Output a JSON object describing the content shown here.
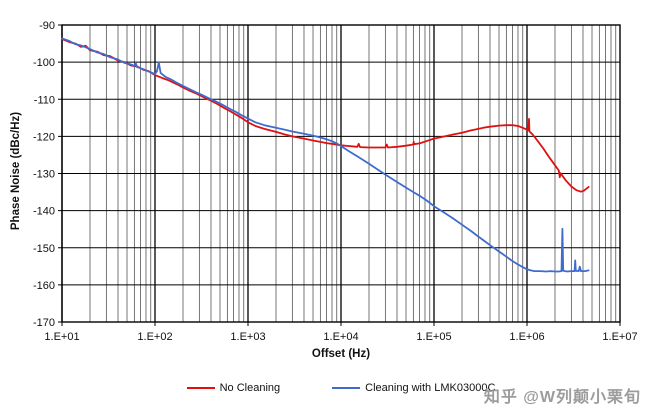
{
  "watermark": "知乎 @W列颠小栗旬",
  "chart_data": {
    "type": "line",
    "title": "",
    "xlabel": "Offset (Hz)",
    "ylabel": "Phase Noise (dBc/Hz)",
    "x_scale": "log",
    "xlim": [
      10,
      10000000
    ],
    "ylim": [
      -170,
      -90
    ],
    "grid": {
      "x_major": true,
      "x_minor": true,
      "y_major": true
    },
    "legend_position": "bottom",
    "x_ticks": [
      {
        "label": "1.E+01",
        "value": 10
      },
      {
        "label": "1.E+02",
        "value": 100
      },
      {
        "label": "1.E+03",
        "value": 1000
      },
      {
        "label": "1.E+04",
        "value": 10000
      },
      {
        "label": "1.E+05",
        "value": 100000
      },
      {
        "label": "1.E+06",
        "value": 1000000
      },
      {
        "label": "1.E+07",
        "value": 10000000
      }
    ],
    "y_ticks": [
      {
        "label": "-90",
        "value": -90
      },
      {
        "label": "-100",
        "value": -100
      },
      {
        "label": "-110",
        "value": -110
      },
      {
        "label": "-120",
        "value": -120
      },
      {
        "label": "-130",
        "value": -130
      },
      {
        "label": "-140",
        "value": -140
      },
      {
        "label": "-150",
        "value": -150
      },
      {
        "label": "-160",
        "value": -160
      },
      {
        "label": "-170",
        "value": -170
      }
    ],
    "series": [
      {
        "name": "No Cleaning",
        "color": "#e01010",
        "points": [
          [
            10,
            -93.8
          ],
          [
            12,
            -94.6
          ],
          [
            14,
            -95.0
          ],
          [
            16,
            -95.9
          ],
          [
            18,
            -95.6
          ],
          [
            20,
            -96.8
          ],
          [
            24,
            -97.2
          ],
          [
            28,
            -98.1
          ],
          [
            33,
            -98.4
          ],
          [
            40,
            -99.6
          ],
          [
            47,
            -100.0
          ],
          [
            55,
            -100.9
          ],
          [
            65,
            -101.2
          ],
          [
            75,
            -102.1
          ],
          [
            85,
            -102.4
          ],
          [
            100,
            -103.5
          ],
          [
            120,
            -104.3
          ],
          [
            140,
            -104.9
          ],
          [
            170,
            -105.9
          ],
          [
            200,
            -106.8
          ],
          [
            240,
            -107.8
          ],
          [
            280,
            -108.5
          ],
          [
            330,
            -109.4
          ],
          [
            400,
            -110.4
          ],
          [
            470,
            -111.3
          ],
          [
            550,
            -112.3
          ],
          [
            650,
            -113.3
          ],
          [
            750,
            -114.2
          ],
          [
            850,
            -115.0
          ],
          [
            1000,
            -116.2
          ],
          [
            1200,
            -117.2
          ],
          [
            1500,
            -118.0
          ],
          [
            2000,
            -118.8
          ],
          [
            2500,
            -119.5
          ],
          [
            3000,
            -120.0
          ],
          [
            4000,
            -120.6
          ],
          [
            5000,
            -121.1
          ],
          [
            6000,
            -121.5
          ],
          [
            7000,
            -121.8
          ],
          [
            8500,
            -122.1
          ],
          [
            10000,
            -122.4
          ],
          [
            12000,
            -122.6
          ],
          [
            15000,
            -122.8
          ],
          [
            15500,
            -122.0
          ],
          [
            16000,
            -122.9
          ],
          [
            20000,
            -123.0
          ],
          [
            25000,
            -123.0
          ],
          [
            30000,
            -123.0
          ],
          [
            31000,
            -122.2
          ],
          [
            32000,
            -123.0
          ],
          [
            40000,
            -122.8
          ],
          [
            50000,
            -122.5
          ],
          [
            60000,
            -122.2
          ],
          [
            60500,
            -121.5
          ],
          [
            61000,
            -122.1
          ],
          [
            70000,
            -121.9
          ],
          [
            85000,
            -121.2
          ],
          [
            100000,
            -120.6
          ],
          [
            130000,
            -120.0
          ],
          [
            160000,
            -119.5
          ],
          [
            200000,
            -119.0
          ],
          [
            250000,
            -118.4
          ],
          [
            300000,
            -118.0
          ],
          [
            350000,
            -117.6
          ],
          [
            400000,
            -117.4
          ],
          [
            500000,
            -117.1
          ],
          [
            600000,
            -117.0
          ],
          [
            700000,
            -117.0
          ],
          [
            800000,
            -117.2
          ],
          [
            900000,
            -117.7
          ],
          [
            1000000,
            -118.2
          ],
          [
            1040000,
            -118.4
          ],
          [
            1050000,
            -115.3
          ],
          [
            1060000,
            -118.6
          ],
          [
            1150000,
            -119.5
          ],
          [
            1300000,
            -121.2
          ],
          [
            1500000,
            -123.3
          ],
          [
            1700000,
            -125.3
          ],
          [
            2000000,
            -127.8
          ],
          [
            2200000,
            -129.2
          ],
          [
            2250000,
            -131.0
          ],
          [
            2300000,
            -129.9
          ],
          [
            2600000,
            -131.8
          ],
          [
            3000000,
            -133.5
          ],
          [
            3400000,
            -134.5
          ],
          [
            3800000,
            -134.9
          ],
          [
            4100000,
            -134.6
          ],
          [
            4400000,
            -134.0
          ],
          [
            4600000,
            -133.6
          ]
        ]
      },
      {
        "name": "Cleaning with LMK03000C",
        "color": "#3f6bcf",
        "points": [
          [
            10,
            -93.6
          ],
          [
            12,
            -94.3
          ],
          [
            14,
            -95.2
          ],
          [
            16,
            -95.5
          ],
          [
            18,
            -96.0
          ],
          [
            20,
            -96.5
          ],
          [
            24,
            -97.4
          ],
          [
            28,
            -97.8
          ],
          [
            33,
            -98.7
          ],
          [
            40,
            -99.3
          ],
          [
            47,
            -100.2
          ],
          [
            55,
            -100.6
          ],
          [
            60,
            -101.0
          ],
          [
            62,
            -100.2
          ],
          [
            64,
            -101.3
          ],
          [
            75,
            -101.9
          ],
          [
            85,
            -102.5
          ],
          [
            100,
            -103.2
          ],
          [
            105,
            -102.4
          ],
          [
            110,
            -100.1
          ],
          [
            115,
            -102.9
          ],
          [
            130,
            -104.0
          ],
          [
            150,
            -104.7
          ],
          [
            170,
            -105.5
          ],
          [
            200,
            -106.4
          ],
          [
            240,
            -107.4
          ],
          [
            280,
            -108.2
          ],
          [
            330,
            -109.0
          ],
          [
            400,
            -110.0
          ],
          [
            470,
            -110.8
          ],
          [
            550,
            -111.7
          ],
          [
            650,
            -112.7
          ],
          [
            750,
            -113.5
          ],
          [
            850,
            -114.3
          ],
          [
            1000,
            -115.2
          ],
          [
            1200,
            -116.2
          ],
          [
            1500,
            -117.0
          ],
          [
            2000,
            -117.7
          ],
          [
            2500,
            -118.2
          ],
          [
            3000,
            -118.7
          ],
          [
            4000,
            -119.3
          ],
          [
            5000,
            -119.8
          ],
          [
            6000,
            -120.3
          ],
          [
            7000,
            -120.8
          ],
          [
            8000,
            -121.3
          ],
          [
            9000,
            -121.9
          ],
          [
            10000,
            -122.6
          ],
          [
            12000,
            -123.9
          ],
          [
            15000,
            -125.4
          ],
          [
            20000,
            -127.4
          ],
          [
            25000,
            -129.0
          ],
          [
            30000,
            -130.3
          ],
          [
            40000,
            -132.3
          ],
          [
            50000,
            -133.8
          ],
          [
            60000,
            -135.0
          ],
          [
            70000,
            -136.0
          ],
          [
            85000,
            -137.4
          ],
          [
            100000,
            -138.8
          ],
          [
            130000,
            -140.6
          ],
          [
            160000,
            -142.1
          ],
          [
            200000,
            -143.8
          ],
          [
            250000,
            -145.5
          ],
          [
            300000,
            -147.0
          ],
          [
            350000,
            -148.2
          ],
          [
            400000,
            -149.3
          ],
          [
            500000,
            -151.0
          ],
          [
            600000,
            -152.4
          ],
          [
            700000,
            -153.6
          ],
          [
            800000,
            -154.5
          ],
          [
            900000,
            -155.2
          ],
          [
            1000000,
            -155.8
          ],
          [
            1100000,
            -156.1
          ],
          [
            1200000,
            -156.3
          ],
          [
            1400000,
            -156.3
          ],
          [
            1600000,
            -156.4
          ],
          [
            1800000,
            -156.3
          ],
          [
            2000000,
            -156.4
          ],
          [
            2200000,
            -156.4
          ],
          [
            2350000,
            -156.3
          ],
          [
            2400000,
            -144.9
          ],
          [
            2450000,
            -156.2
          ],
          [
            2700000,
            -156.4
          ],
          [
            3000000,
            -156.3
          ],
          [
            3250000,
            -156.3
          ],
          [
            3300000,
            -153.4
          ],
          [
            3350000,
            -156.2
          ],
          [
            3600000,
            -156.3
          ],
          [
            3700000,
            -155.1
          ],
          [
            3800000,
            -156.3
          ],
          [
            4200000,
            -156.3
          ],
          [
            4600000,
            -156.1
          ]
        ]
      }
    ]
  },
  "legend": {
    "items": [
      {
        "label": "No Cleaning"
      },
      {
        "label": "Cleaning with LMK03000C"
      }
    ]
  }
}
